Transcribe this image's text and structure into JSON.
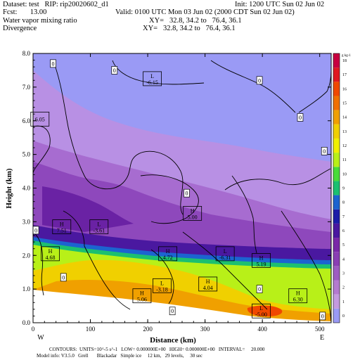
{
  "header": {
    "dataset_line": "Dataset: test   RIP: rip20020602_d1",
    "init_line": "Init: 1200 UTC Sun 02 Jun 02",
    "fcst_line": "Fcst:       13.00",
    "valid_line": "Valid: 0100 UTC Mon 03 Jun 02 (2000 CDT Sun 02 Jun 02)",
    "field1_name": "Water vapor mixing ratio",
    "field1_xy": "XY=   32.8, 34.2 to   76.4, 36.1",
    "field2_name": "Divergence",
    "field2_xy": "XY=   32.8, 34.2 to   76.4, 36.1"
  },
  "footer": {
    "contours_line": "CONTOURS:  UNITS=10^-5 s^-1   LOW= 0.000000E+00   HIGH= 0.000000E+00   INTERVAL=     20.000",
    "model_line": "Model info: V3.5.0   Grell       Blackadar   Simple ice     12 km,   29 levels,     30 sec"
  },
  "chart_data": {
    "type": "heatmap",
    "xlabel": "Distance  (km)",
    "ylabel": "Height  (km)",
    "xlim": [
      0,
      520
    ],
    "ylim": [
      0,
      8.0
    ],
    "x_ticks": [
      0,
      100,
      200,
      300,
      400,
      500
    ],
    "y_ticks": [
      "0.0",
      "1.0",
      "2.0",
      "3.0",
      "4.0",
      "5.0",
      "6.0",
      "7.0",
      "8.0"
    ],
    "left_end_label": "W",
    "right_end_label": "E",
    "colorbar": {
      "unit": "g kg-1",
      "levels": [
        "0",
        "1",
        "2",
        "3",
        "4",
        "5",
        "6",
        "7",
        "8",
        "9",
        "10",
        "11",
        "12",
        "13",
        "14",
        "15",
        "16",
        "17",
        "18"
      ],
      "colors": [
        "#9a9af5",
        "#c49ae0",
        "#b47ad0",
        "#9e5cc2",
        "#8a3eb4",
        "#7a28a8",
        "#4a18a0",
        "#1c1ca8",
        "#1c64d0",
        "#1cc070",
        "#48dc38",
        "#b8f018",
        "#f0f000",
        "#f0d000",
        "#f0a000",
        "#f07000",
        "#f04800",
        "#e01820",
        "#c80040"
      ]
    },
    "annotations": [
      {
        "text": "L",
        "value": "-6.15",
        "x": 208,
        "y": 7.25
      },
      {
        "text": "L",
        "value": "-3.61",
        "x": 115,
        "y": 2.85
      },
      {
        "text": "L",
        "value": "-3.18",
        "x": 225,
        "y": 1.1
      },
      {
        "text": "L",
        "value": "-6.31",
        "x": 335,
        "y": 2.05
      },
      {
        "text": "L",
        "value": "-5.00",
        "x": 398,
        "y": 0.35
      },
      {
        "text": "H",
        "value": "7.51",
        "x": 50,
        "y": 2.85
      },
      {
        "text": "H",
        "value": "4.68",
        "x": 30,
        "y": 2.05
      },
      {
        "text": "H",
        "value": "4.72",
        "x": 235,
        "y": 2.05
      },
      {
        "text": "H",
        "value": "5.00",
        "x": 278,
        "y": 3.25
      },
      {
        "text": "H",
        "value": "4.04",
        "x": 305,
        "y": 1.15
      },
      {
        "text": "H",
        "value": "5.19",
        "x": 398,
        "y": 1.85
      },
      {
        "text": "H",
        "value": "5.06",
        "x": 190,
        "y": 0.8
      },
      {
        "text": "H",
        "value": "6.30",
        "x": 462,
        "y": 0.8
      },
      {
        "text": "",
        "value": "6.05",
        "x": 12,
        "y": 6.05
      }
    ],
    "zero_labels": [
      {
        "x": 35,
        "y": 7.7
      },
      {
        "x": 142,
        "y": 7.5
      },
      {
        "x": 395,
        "y": 7.2
      },
      {
        "x": 466,
        "y": 6.1
      },
      {
        "x": 508,
        "y": 5.1
      },
      {
        "x": 268,
        "y": 3.85
      },
      {
        "x": 5,
        "y": 2.75
      },
      {
        "x": 53,
        "y": 1.35
      },
      {
        "x": 243,
        "y": 0.35
      },
      {
        "x": 395,
        "y": 1.0
      },
      {
        "x": 505,
        "y": 0.2
      }
    ]
  }
}
